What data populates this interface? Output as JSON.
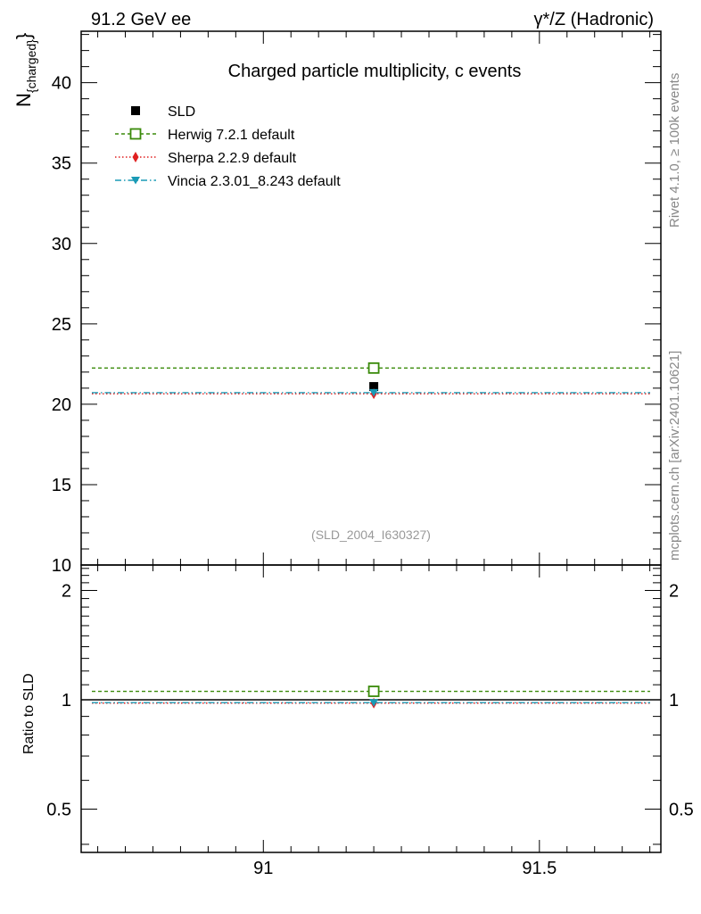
{
  "header": {
    "left": "91.2 GeV ee",
    "right": "γ*/Z (Hadronic)"
  },
  "side_labels": {
    "rivet": "Rivet 4.1.0, ≥ 100k events",
    "mcplots": "mcplots.cern.ch [arXiv:2401.10621]"
  },
  "chart_data": [
    {
      "type": "scatter",
      "title": "Charged particle multiplicity, c events",
      "ylabel": "N",
      "ylabel_sub": "{charged}",
      "ylabel_suffix": "}",
      "xlim": [
        90.67,
        91.72
      ],
      "ylim": [
        10,
        43.2
      ],
      "yticks": [
        10,
        15,
        20,
        25,
        30,
        35,
        40
      ],
      "ytick_labels": [
        "10",
        "15",
        "20",
        "25",
        "30",
        "35",
        "40"
      ],
      "watermark": "(SLD_2004_I630327)",
      "x_point": 91.2,
      "series": [
        {
          "name": "SLD",
          "type": "data",
          "value": 21.1,
          "color": "#000000",
          "marker": "square-filled",
          "line": "none"
        },
        {
          "name": "Herwig 7.2.1 default",
          "type": "mc",
          "value": 22.25,
          "color": "#3a8a0a",
          "marker": "square-open",
          "line": "dashed"
        },
        {
          "name": "Sherpa 2.2.9 default",
          "type": "mc",
          "value": 20.65,
          "color": "#e02020",
          "marker": "diamond",
          "line": "dotted"
        },
        {
          "name": "Vincia 2.3.01_8.243 default",
          "type": "mc",
          "value": 20.72,
          "color": "#1a9ab5",
          "marker": "triangle-down",
          "line": "dashdot"
        }
      ]
    },
    {
      "type": "scatter",
      "title": "",
      "ylabel": "Ratio to SLD",
      "xlim": [
        90.67,
        91.72
      ],
      "ylim": [
        0.38,
        2.35
      ],
      "yscale": "log",
      "yticks": [
        0.5,
        1,
        2
      ],
      "ytick_labels": [
        "0.5",
        "1",
        "2"
      ],
      "xticks": [
        91,
        91.5
      ],
      "xtick_labels": [
        "91",
        "91.5"
      ],
      "reference": 1,
      "series": [
        {
          "name": "Herwig 7.2.1 default",
          "value": 1.055,
          "color": "#3a8a0a",
          "marker": "square-open",
          "line": "dashed"
        },
        {
          "name": "Sherpa 2.2.9 default",
          "value": 0.979,
          "color": "#e02020",
          "marker": "diamond",
          "line": "dotted"
        },
        {
          "name": "Vincia 2.3.01_8.243 default",
          "value": 0.982,
          "color": "#1a9ab5",
          "marker": "triangle-down",
          "line": "dashdot"
        }
      ]
    }
  ]
}
